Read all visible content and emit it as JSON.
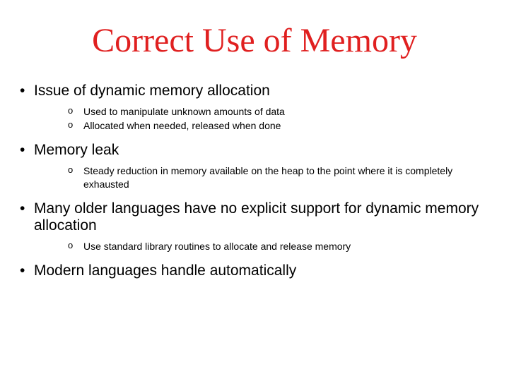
{
  "title": "Correct Use of Memory",
  "title_color": "#e02020",
  "title_fontsize": 48,
  "body_color": "#000000",
  "background_color": "#ffffff",
  "bullets": [
    {
      "text": "Issue of dynamic memory allocation",
      "subs": [
        "Used to manipulate unknown amounts of data",
        "Allocated when needed, released when done"
      ]
    },
    {
      "text": "Memory leak",
      "subs": [
        "Steady reduction in memory available on the heap to the point where it is completely exhausted"
      ]
    },
    {
      "text": "Many older languages have no explicit support for dynamic memory allocation",
      "subs": [
        "Use standard library routines to allocate and release memory"
      ]
    },
    {
      "text": "Modern languages handle automatically",
      "subs": []
    }
  ]
}
